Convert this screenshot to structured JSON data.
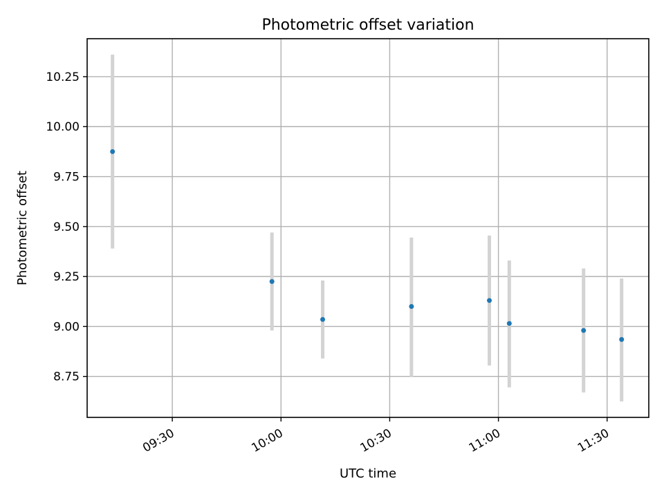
{
  "chart_data": {
    "type": "scatter",
    "title": "Photometric offset variation",
    "xlabel": "UTC time",
    "ylabel": "Photometric offset",
    "x_ticks": [
      "09:30",
      "10:00",
      "10:30",
      "11:00",
      "11:30"
    ],
    "y_ticks": [
      "8.75",
      "9.00",
      "9.25",
      "9.50",
      "9.75",
      "10.00",
      "10.25"
    ],
    "xlim": [
      "09:06:30",
      "11:41:30"
    ],
    "ylim": [
      8.545,
      10.44
    ],
    "grid": true,
    "points": [
      {
        "x": "09:13:30",
        "y": 9.875,
        "err_low": 9.39,
        "err_high": 10.36
      },
      {
        "x": "09:57:30",
        "y": 9.225,
        "err_low": 8.98,
        "err_high": 9.47
      },
      {
        "x": "10:11:30",
        "y": 9.035,
        "err_low": 8.84,
        "err_high": 9.23
      },
      {
        "x": "10:36:00",
        "y": 9.1,
        "err_low": 8.75,
        "err_high": 9.445
      },
      {
        "x": "10:57:30",
        "y": 9.13,
        "err_low": 8.805,
        "err_high": 9.455
      },
      {
        "x": "11:03:00",
        "y": 9.015,
        "err_low": 8.695,
        "err_high": 9.33
      },
      {
        "x": "11:23:30",
        "y": 8.98,
        "err_low": 8.67,
        "err_high": 9.29
      },
      {
        "x": "11:34:00",
        "y": 8.935,
        "err_low": 8.625,
        "err_high": 9.24
      }
    ],
    "colors": {
      "point": "#1f77b4",
      "errorbar": "#d3d3d3",
      "grid": "#b0b0b0",
      "axes": "#000000"
    }
  }
}
